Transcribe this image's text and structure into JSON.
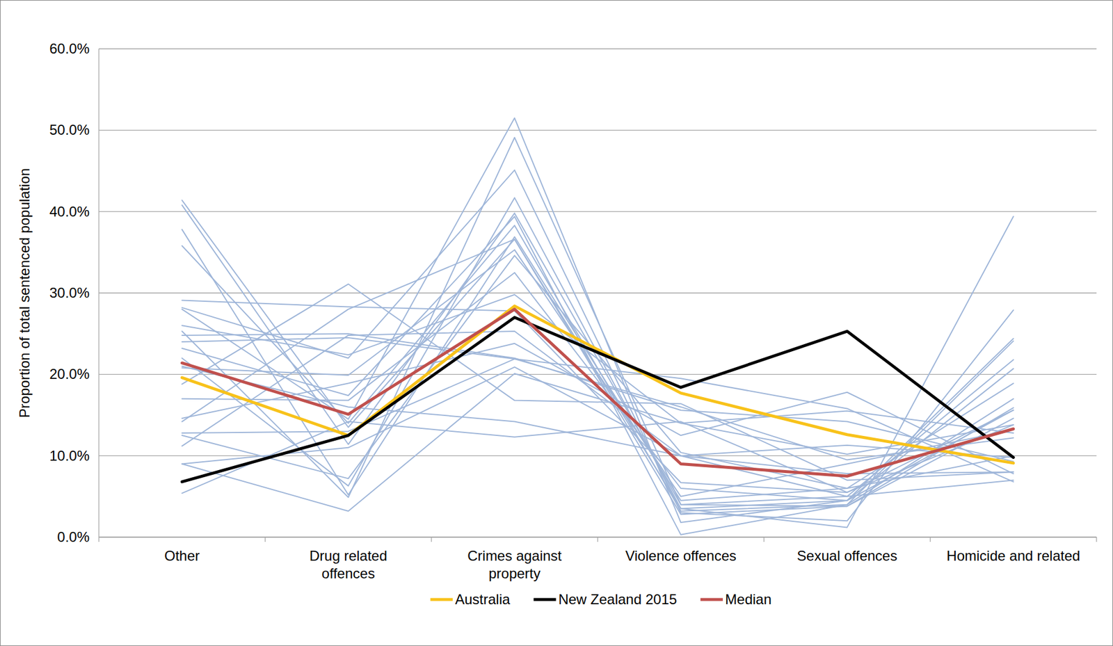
{
  "chart_data": {
    "type": "line",
    "y_label": "Proportion of total sentenced population",
    "categories": [
      "Other",
      "Drug related offences",
      "Crimes against property",
      "Violence offences",
      "Sexual offences",
      "Homicide and related"
    ],
    "ylim": [
      0,
      60
    ],
    "yticks": [
      {
        "value": 0,
        "label": "0.0%"
      },
      {
        "value": 10,
        "label": "10.0%"
      },
      {
        "value": 20,
        "label": "20.0%"
      },
      {
        "value": 30,
        "label": "30.0%"
      },
      {
        "value": 40,
        "label": "40.0%"
      },
      {
        "value": 50,
        "label": "50.0%"
      },
      {
        "value": 60,
        "label": "60.0%"
      }
    ],
    "grid": true,
    "legend": "bottom",
    "series": [
      {
        "color": "#9fb6d9",
        "values": [
          41.4,
          13.5,
          36.6,
          3.5,
          4.5,
          24.4
        ]
      },
      {
        "color": "#9fb6d9",
        "values": [
          40.8,
          11.4,
          39.8,
          4.0,
          5.0,
          21.8
        ]
      },
      {
        "color": "#9fb6d9",
        "values": [
          37.8,
          5.2,
          36.9,
          4.5,
          6.0,
          18.9
        ]
      },
      {
        "color": "#9fb6d9",
        "values": [
          35.8,
          14.0,
          38.3,
          3.2,
          4.0,
          24.1
        ]
      },
      {
        "color": "#9fb6d9",
        "values": [
          29.1,
          28.3,
          27.8,
          6.7,
          5.5,
          15.6
        ]
      },
      {
        "color": "#9fb6d9",
        "values": [
          28.2,
          22.0,
          45.1,
          3.0,
          2.0,
          27.9
        ]
      },
      {
        "color": "#9fb6d9",
        "values": [
          28.0,
          14.5,
          51.5,
          1.8,
          4.5,
          20.7
        ]
      },
      {
        "color": "#9fb6d9",
        "values": [
          26.0,
          22.4,
          29.8,
          14.0,
          10.2,
          13.8
        ]
      },
      {
        "color": "#9fb6d9",
        "values": [
          25.3,
          4.9,
          49.1,
          4.0,
          3.8,
          15.9
        ]
      },
      {
        "color": "#9fb6d9",
        "values": [
          24.8,
          25.0,
          22.0,
          15.6,
          14.2,
          9.3
        ]
      },
      {
        "color": "#9fb6d9",
        "values": [
          24.0,
          24.5,
          21.9,
          16.0,
          9.5,
          12.2
        ]
      },
      {
        "color": "#9fb6d9",
        "values": [
          23.2,
          17.4,
          39.4,
          0.3,
          4.0,
          17.0
        ]
      },
      {
        "color": "#9fb6d9",
        "values": [
          22.0,
          6.3,
          41.7,
          3.5,
          1.2,
          39.4
        ]
      },
      {
        "color": "#9fb6d9",
        "values": [
          20.8,
          19.9,
          35.3,
          5.0,
          9.0,
          13.2
        ]
      },
      {
        "color": "#9fb6d9",
        "values": [
          18.8,
          31.1,
          16.8,
          16.4,
          7.0,
          8.0
        ]
      },
      {
        "color": "#9fb6d9",
        "values": [
          17.0,
          16.8,
          32.5,
          6.0,
          4.5,
          15.6
        ]
      },
      {
        "color": "#9fb6d9",
        "values": [
          14.6,
          18.9,
          23.8,
          12.5,
          17.8,
          7.8
        ]
      },
      {
        "color": "#9fb6d9",
        "values": [
          14.2,
          28.0,
          36.6,
          2.8,
          3.8,
          14.6
        ]
      },
      {
        "color": "#9fb6d9",
        "values": [
          12.8,
          13.0,
          21.9,
          19.5,
          15.8,
          6.8
        ]
      },
      {
        "color": "#9fb6d9",
        "values": [
          12.5,
          7.2,
          34.6,
          10.4,
          6.0,
          10.0
        ]
      },
      {
        "color": "#9fb6d9",
        "values": [
          11.2,
          24.8,
          25.3,
          10.0,
          11.3,
          9.8
        ]
      },
      {
        "color": "#9fb6d9",
        "values": [
          9.0,
          3.2,
          20.1,
          14.0,
          15.5,
          12.8
        ]
      },
      {
        "color": "#9fb6d9",
        "values": [
          9.0,
          11.0,
          20.9,
          10.0,
          7.8,
          8.0
        ]
      },
      {
        "color": "#9fb6d9",
        "values": [
          5.4,
          14.2,
          12.3,
          14.2,
          5.5,
          13.8
        ]
      },
      {
        "color": "#9fb6d9",
        "values": [
          21.0,
          16.0,
          14.2,
          10.0,
          5.0,
          7.0
        ]
      },
      {
        "name": "Australia",
        "color": "#f8c21a",
        "values": [
          19.6,
          12.5,
          28.4,
          17.7,
          12.6,
          9.1
        ]
      },
      {
        "name": "New Zealand 2015",
        "color": "#000000",
        "values": [
          6.8,
          12.5,
          27.0,
          18.4,
          25.3,
          9.8
        ]
      },
      {
        "name": "Median",
        "color": "#c0504d",
        "values": [
          21.4,
          15.1,
          28.0,
          9.0,
          7.5,
          13.3
        ]
      }
    ]
  }
}
